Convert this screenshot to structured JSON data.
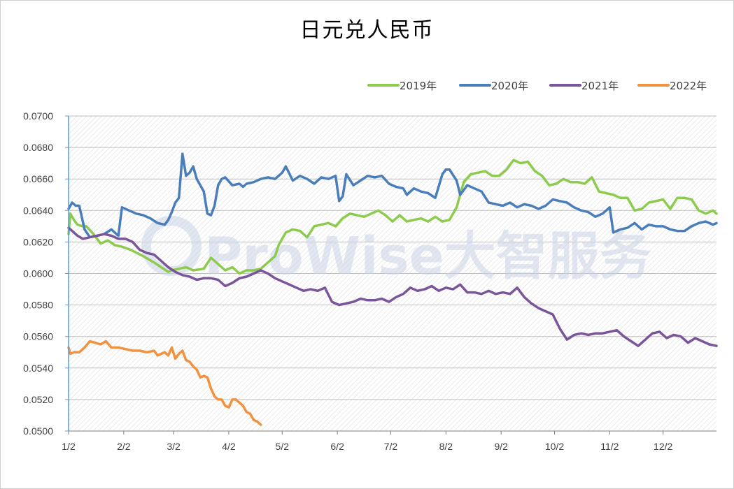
{
  "chart_data": {
    "type": "line",
    "title": "日元兑人民币",
    "watermark": "ProWise大智服务",
    "xlabel": "",
    "ylabel": "",
    "ylim": [
      0.05,
      0.07
    ],
    "yticks": [
      "0.0700",
      "0.0680",
      "0.0660",
      "0.0640",
      "0.0620",
      "0.0600",
      "0.0580",
      "0.0560",
      "0.0540",
      "0.0520",
      "0.0500"
    ],
    "ytick_values": [
      0.07,
      0.068,
      0.066,
      0.064,
      0.062,
      0.06,
      0.058,
      0.056,
      0.054,
      0.052,
      0.05
    ],
    "xticks": [
      "1/2",
      "2/2",
      "3/2",
      "4/2",
      "5/2",
      "6/2",
      "7/2",
      "8/2",
      "9/2",
      "10/2",
      "11/2",
      "12/2"
    ],
    "xtick_days": [
      0,
      31,
      59,
      90,
      120,
      151,
      181,
      212,
      243,
      273,
      304,
      334
    ],
    "x_domain_days": [
      0,
      364
    ],
    "legend_position": "top-right",
    "grid": true,
    "series": [
      {
        "name": "2019年",
        "color": "#8DCB4E",
        "x": [
          0,
          1,
          3,
          5,
          8,
          10,
          14,
          18,
          22,
          26,
          30,
          35,
          42,
          48,
          52,
          56,
          58,
          62,
          66,
          70,
          76,
          80,
          82,
          86,
          88,
          92,
          96,
          100,
          104,
          108,
          112,
          116,
          118,
          122,
          126,
          130,
          134,
          138,
          142,
          146,
          150,
          154,
          158,
          162,
          166,
          170,
          174,
          178,
          182,
          186,
          190,
          194,
          198,
          202,
          206,
          210,
          214,
          218,
          222,
          226,
          230,
          234,
          238,
          242,
          246,
          250,
          254,
          258,
          262,
          266,
          270,
          274,
          278,
          282,
          286,
          290,
          294,
          298,
          302,
          306,
          310,
          314,
          318,
          322,
          326,
          330,
          334,
          338,
          342,
          346,
          350,
          354,
          358,
          362,
          364
        ],
        "y": [
          0.0625,
          0.0638,
          0.0634,
          0.0631,
          0.063,
          0.063,
          0.0625,
          0.0619,
          0.0621,
          0.0618,
          0.0617,
          0.0615,
          0.0611,
          0.0607,
          0.0604,
          0.0601,
          0.0602,
          0.0603,
          0.0604,
          0.0602,
          0.0603,
          0.061,
          0.0608,
          0.0604,
          0.0602,
          0.0604,
          0.06,
          0.0602,
          0.0602,
          0.0603,
          0.0607,
          0.0611,
          0.0618,
          0.0626,
          0.0628,
          0.0627,
          0.0623,
          0.063,
          0.0631,
          0.0632,
          0.063,
          0.0635,
          0.0638,
          0.0637,
          0.0636,
          0.0638,
          0.064,
          0.0637,
          0.0633,
          0.0637,
          0.0633,
          0.0634,
          0.0635,
          0.0633,
          0.0636,
          0.0633,
          0.0634,
          0.0642,
          0.0658,
          0.0663,
          0.0664,
          0.0665,
          0.0662,
          0.0662,
          0.0666,
          0.0672,
          0.067,
          0.0671,
          0.0665,
          0.0662,
          0.0656,
          0.0657,
          0.066,
          0.0658,
          0.0658,
          0.0657,
          0.0661,
          0.0652,
          0.0651,
          0.065,
          0.0648,
          0.0648,
          0.064,
          0.0641,
          0.0645,
          0.0646,
          0.0647,
          0.0641,
          0.0648,
          0.0648,
          0.0647,
          0.064,
          0.0638,
          0.064,
          0.0638
        ]
      },
      {
        "name": "2020年",
        "color": "#4A7EBB",
        "x": [
          0,
          2,
          4,
          6,
          9,
          12,
          16,
          20,
          24,
          28,
          30,
          34,
          38,
          42,
          46,
          50,
          54,
          56,
          58,
          60,
          62,
          64,
          66,
          68,
          70,
          72,
          74,
          76,
          78,
          80,
          82,
          84,
          86,
          88,
          92,
          96,
          98,
          100,
          104,
          108,
          112,
          116,
          120,
          122,
          126,
          130,
          134,
          138,
          142,
          146,
          150,
          152,
          154,
          156,
          160,
          164,
          168,
          172,
          176,
          180,
          184,
          188,
          190,
          194,
          198,
          202,
          206,
          210,
          212,
          214,
          218,
          220,
          224,
          228,
          232,
          236,
          240,
          244,
          248,
          252,
          256,
          260,
          264,
          268,
          272,
          276,
          280,
          284,
          288,
          292,
          296,
          300,
          304,
          306,
          310,
          314,
          318,
          322,
          326,
          330,
          334,
          338,
          342,
          346,
          350,
          354,
          358,
          362,
          364
        ],
        "y": [
          0.0641,
          0.0645,
          0.0643,
          0.0643,
          0.0628,
          0.0623,
          0.0624,
          0.0625,
          0.0628,
          0.0624,
          0.0642,
          0.064,
          0.0638,
          0.0637,
          0.0635,
          0.0632,
          0.0631,
          0.0634,
          0.0639,
          0.0645,
          0.0648,
          0.0676,
          0.0662,
          0.0664,
          0.0668,
          0.066,
          0.0656,
          0.0652,
          0.0638,
          0.0637,
          0.0643,
          0.0656,
          0.066,
          0.0661,
          0.0656,
          0.0657,
          0.0655,
          0.0657,
          0.0658,
          0.066,
          0.0661,
          0.066,
          0.0664,
          0.0668,
          0.0659,
          0.0662,
          0.066,
          0.0657,
          0.0661,
          0.066,
          0.0662,
          0.0646,
          0.0649,
          0.0663,
          0.0656,
          0.0659,
          0.0662,
          0.0661,
          0.0662,
          0.0657,
          0.0655,
          0.0654,
          0.065,
          0.0654,
          0.0652,
          0.0651,
          0.0648,
          0.0663,
          0.0666,
          0.0666,
          0.0659,
          0.065,
          0.0656,
          0.0654,
          0.0652,
          0.0645,
          0.0644,
          0.0643,
          0.0645,
          0.0642,
          0.0644,
          0.0643,
          0.0641,
          0.0643,
          0.0647,
          0.0646,
          0.0645,
          0.0642,
          0.064,
          0.0639,
          0.0636,
          0.0638,
          0.0642,
          0.0626,
          0.0628,
          0.0629,
          0.0632,
          0.0628,
          0.0631,
          0.063,
          0.063,
          0.0628,
          0.0627,
          0.0627,
          0.063,
          0.0632,
          0.0633,
          0.0631,
          0.0632
        ]
      },
      {
        "name": "2021年",
        "color": "#7B559A",
        "x": [
          0,
          2,
          5,
          8,
          12,
          16,
          20,
          24,
          28,
          32,
          36,
          40,
          44,
          48,
          52,
          56,
          60,
          64,
          68,
          72,
          76,
          80,
          84,
          88,
          92,
          96,
          100,
          104,
          108,
          112,
          116,
          120,
          124,
          128,
          132,
          136,
          140,
          144,
          148,
          152,
          156,
          160,
          164,
          168,
          172,
          176,
          180,
          184,
          188,
          192,
          196,
          200,
          204,
          208,
          212,
          216,
          220,
          224,
          228,
          232,
          236,
          240,
          244,
          248,
          252,
          256,
          260,
          264,
          268,
          272,
          276,
          280,
          284,
          288,
          292,
          296,
          300,
          304,
          308,
          312,
          316,
          320,
          324,
          328,
          332,
          336,
          340,
          344,
          348,
          352,
          356,
          360,
          364
        ],
        "y": [
          0.0629,
          0.0627,
          0.0624,
          0.0622,
          0.0623,
          0.0624,
          0.0625,
          0.0624,
          0.0622,
          0.0622,
          0.062,
          0.0615,
          0.0613,
          0.0612,
          0.0608,
          0.0604,
          0.0601,
          0.0599,
          0.0598,
          0.0596,
          0.0597,
          0.0597,
          0.0596,
          0.0592,
          0.0594,
          0.0597,
          0.0598,
          0.06,
          0.0602,
          0.06,
          0.0597,
          0.0595,
          0.0593,
          0.0591,
          0.0589,
          0.059,
          0.0589,
          0.0591,
          0.0582,
          0.058,
          0.0581,
          0.0582,
          0.0584,
          0.0583,
          0.0583,
          0.0584,
          0.0582,
          0.0585,
          0.0587,
          0.0591,
          0.0589,
          0.059,
          0.0592,
          0.0589,
          0.0591,
          0.059,
          0.0593,
          0.0588,
          0.0588,
          0.0587,
          0.0589,
          0.0587,
          0.0588,
          0.0587,
          0.0591,
          0.0585,
          0.0581,
          0.0578,
          0.0576,
          0.0574,
          0.0565,
          0.0558,
          0.0561,
          0.0562,
          0.0561,
          0.0562,
          0.0562,
          0.0563,
          0.0564,
          0.056,
          0.0557,
          0.0554,
          0.0558,
          0.0562,
          0.0563,
          0.0559,
          0.0561,
          0.056,
          0.0556,
          0.0559,
          0.0557,
          0.0555,
          0.0554
        ]
      },
      {
        "name": "2022年",
        "color": "#F0923F",
        "x": [
          0,
          1,
          3,
          6,
          9,
          12,
          15,
          18,
          21,
          24,
          28,
          32,
          36,
          40,
          44,
          48,
          50,
          52,
          54,
          56,
          58,
          60,
          62,
          64,
          66,
          68,
          70,
          72,
          74,
          76,
          78,
          80,
          82,
          84,
          86,
          88,
          90,
          92,
          94,
          96,
          98,
          100,
          102,
          104,
          106,
          108
        ],
        "y": [
          0.0553,
          0.0549,
          0.055,
          0.055,
          0.0553,
          0.0557,
          0.0556,
          0.0555,
          0.0557,
          0.0553,
          0.0553,
          0.0552,
          0.0551,
          0.0551,
          0.055,
          0.0551,
          0.0548,
          0.0549,
          0.055,
          0.0548,
          0.0553,
          0.0546,
          0.0549,
          0.0551,
          0.0545,
          0.0544,
          0.0541,
          0.0539,
          0.0534,
          0.0535,
          0.0534,
          0.0527,
          0.0522,
          0.052,
          0.052,
          0.0516,
          0.0515,
          0.052,
          0.052,
          0.0518,
          0.0516,
          0.0512,
          0.0511,
          0.0507,
          0.0506,
          0.0504
        ]
      }
    ]
  },
  "colors": {
    "plot_border": "#7f7f7f",
    "y_axis": "#5B9BD5",
    "hatch": "#d9d9d9",
    "gridline": "#bfbfbf"
  }
}
